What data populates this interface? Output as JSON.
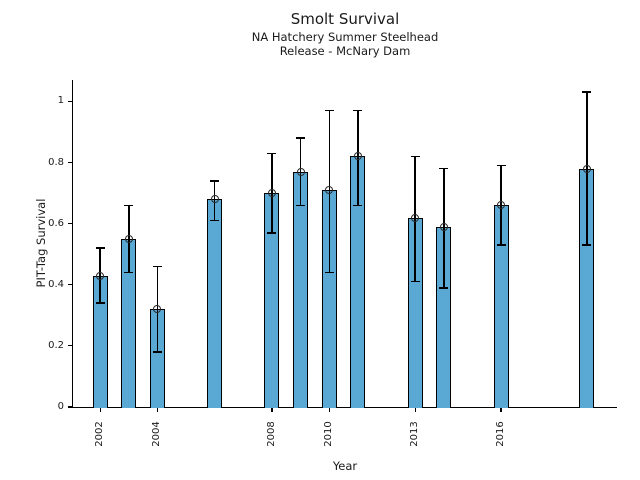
{
  "title": "Smolt Survival",
  "subtitle1": "NA Hatchery Summer Steelhead",
  "subtitle2": "Release - McNary Dam",
  "chart_data": {
    "type": "bar",
    "title": "Smolt Survival",
    "subtitle1": "NA Hatchery Summer Steelhead",
    "subtitle2": "Release - McNary Dam",
    "xlabel": "Year",
    "ylabel": "PIT-Tag Survival",
    "categories": [
      2002,
      2003,
      2004,
      2006,
      2008,
      2009,
      2010,
      2011,
      2013,
      2014,
      2016,
      2019
    ],
    "values": [
      0.43,
      0.55,
      0.32,
      0.68,
      0.7,
      0.77,
      0.71,
      0.82,
      0.62,
      0.59,
      0.66,
      0.78
    ],
    "error_low": [
      0.34,
      0.44,
      0.18,
      0.61,
      0.57,
      0.66,
      0.44,
      0.66,
      0.41,
      0.39,
      0.53,
      0.53
    ],
    "error_high": [
      0.52,
      0.66,
      0.46,
      0.74,
      0.83,
      0.88,
      0.97,
      0.97,
      0.82,
      0.78,
      0.79,
      1.03
    ],
    "x_ticks": [
      {
        "value": 2002,
        "label": "2002"
      },
      {
        "value": 2004,
        "label": "2004"
      },
      {
        "value": 2008,
        "label": "2008"
      },
      {
        "value": 2010,
        "label": "2010"
      },
      {
        "value": 2013,
        "label": "2013"
      },
      {
        "value": 2016,
        "label": "2016"
      }
    ],
    "y_ticks": [
      {
        "value": 0,
        "label": "0"
      },
      {
        "value": 0.2,
        "label": "0.2"
      },
      {
        "value": 0.4,
        "label": "0.4"
      },
      {
        "value": 0.6,
        "label": "0.6"
      },
      {
        "value": 0.8,
        "label": "0.8"
      },
      {
        "value": 1,
        "label": "1"
      }
    ],
    "xlim": [
      2001.05,
      2020.05
    ],
    "ylim": [
      0,
      1.07
    ],
    "grid": false,
    "legend": null,
    "marker": "open-circle",
    "bar_color": "#5aa8d4",
    "bar_edge_color": "#000000",
    "error_color": "#000000",
    "axis_color": "#000000",
    "text_color": "#1a1a1a"
  }
}
